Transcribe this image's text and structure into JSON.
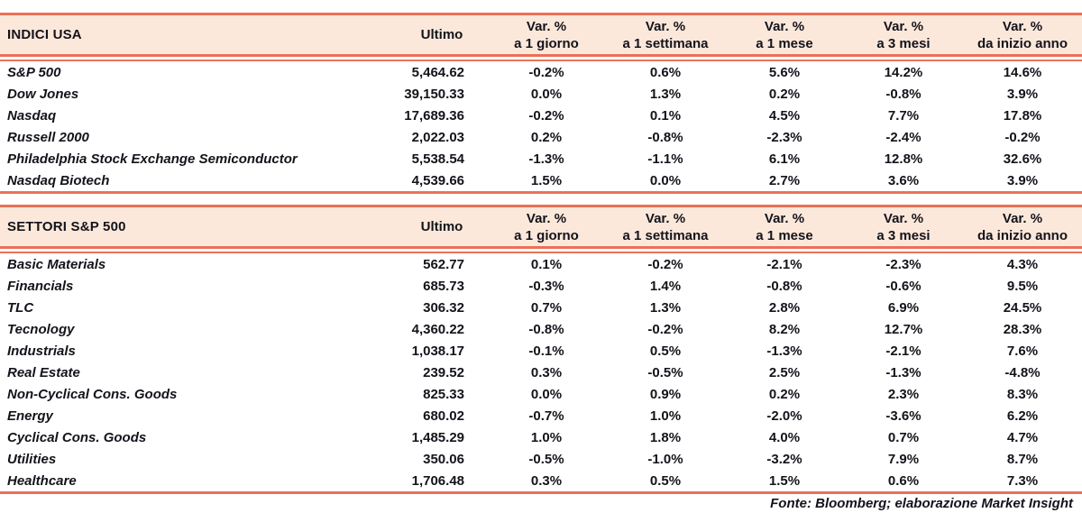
{
  "colors": {
    "accent": "#EB7157",
    "header_band": "#FCE8DA",
    "text": "#13131B"
  },
  "columns": {
    "ultimo": "Ultimo",
    "var_label": "Var. %",
    "periods": [
      "a 1 giorno",
      "a 1 settimana",
      "a 1 mese",
      "a 3 mesi",
      "da inizio anno"
    ]
  },
  "sections": [
    {
      "title": "INDICI USA",
      "rows": [
        {
          "name": "S&P 500",
          "ultimo": "5,464.62",
          "pcts": [
            "-0.2%",
            "0.6%",
            "5.6%",
            "14.2%",
            "14.6%"
          ]
        },
        {
          "name": "Dow Jones",
          "ultimo": "39,150.33",
          "pcts": [
            "0.0%",
            "1.3%",
            "0.2%",
            "-0.8%",
            "3.9%"
          ]
        },
        {
          "name": "Nasdaq",
          "ultimo": "17,689.36",
          "pcts": [
            "-0.2%",
            "0.1%",
            "4.5%",
            "7.7%",
            "17.8%"
          ]
        },
        {
          "name": "Russell 2000",
          "ultimo": "2,022.03",
          "pcts": [
            "0.2%",
            "-0.8%",
            "-2.3%",
            "-2.4%",
            "-0.2%"
          ]
        },
        {
          "name": "Philadelphia Stock Exchange Semiconductor",
          "ultimo": "5,538.54",
          "pcts": [
            "-1.3%",
            "-1.1%",
            "6.1%",
            "12.8%",
            "32.6%"
          ]
        },
        {
          "name": "Nasdaq Biotech",
          "ultimo": "4,539.66",
          "pcts": [
            "1.5%",
            "0.0%",
            "2.7%",
            "3.6%",
            "3.9%"
          ]
        }
      ]
    },
    {
      "title": "SETTORI S&P 500",
      "rows": [
        {
          "name": "Basic Materials",
          "ultimo": "562.77",
          "pcts": [
            "0.1%",
            "-0.2%",
            "-2.1%",
            "-2.3%",
            "4.3%"
          ]
        },
        {
          "name": "Financials",
          "ultimo": "685.73",
          "pcts": [
            "-0.3%",
            "1.4%",
            "-0.8%",
            "-0.6%",
            "9.5%"
          ]
        },
        {
          "name": "TLC",
          "ultimo": "306.32",
          "pcts": [
            "0.7%",
            "1.3%",
            "2.8%",
            "6.9%",
            "24.5%"
          ]
        },
        {
          "name": "Tecnology",
          "ultimo": "4,360.22",
          "pcts": [
            "-0.8%",
            "-0.2%",
            "8.2%",
            "12.7%",
            "28.3%"
          ]
        },
        {
          "name": "Industrials",
          "ultimo": "1,038.17",
          "pcts": [
            "-0.1%",
            "0.5%",
            "-1.3%",
            "-2.1%",
            "7.6%"
          ]
        },
        {
          "name": "Real Estate",
          "ultimo": "239.52",
          "pcts": [
            "0.3%",
            "-0.5%",
            "2.5%",
            "-1.3%",
            "-4.8%"
          ]
        },
        {
          "name": "Non-Cyclical Cons. Goods",
          "ultimo": "825.33",
          "pcts": [
            "0.0%",
            "0.9%",
            "0.2%",
            "2.3%",
            "8.3%"
          ]
        },
        {
          "name": "Energy",
          "ultimo": "680.02",
          "pcts": [
            "-0.7%",
            "1.0%",
            "-2.0%",
            "-3.6%",
            "6.2%"
          ]
        },
        {
          "name": "Cyclical Cons. Goods",
          "ultimo": "1,485.29",
          "pcts": [
            "1.0%",
            "1.8%",
            "4.0%",
            "0.7%",
            "4.7%"
          ]
        },
        {
          "name": "Utilities",
          "ultimo": "350.06",
          "pcts": [
            "-0.5%",
            "-1.0%",
            "-3.2%",
            "7.9%",
            "8.7%"
          ]
        },
        {
          "name": "Healthcare",
          "ultimo": "1,706.48",
          "pcts": [
            "0.3%",
            "0.5%",
            "1.5%",
            "0.6%",
            "7.3%"
          ]
        }
      ]
    }
  ],
  "footer": "Fonte: Bloomberg; elaborazione Market Insight"
}
